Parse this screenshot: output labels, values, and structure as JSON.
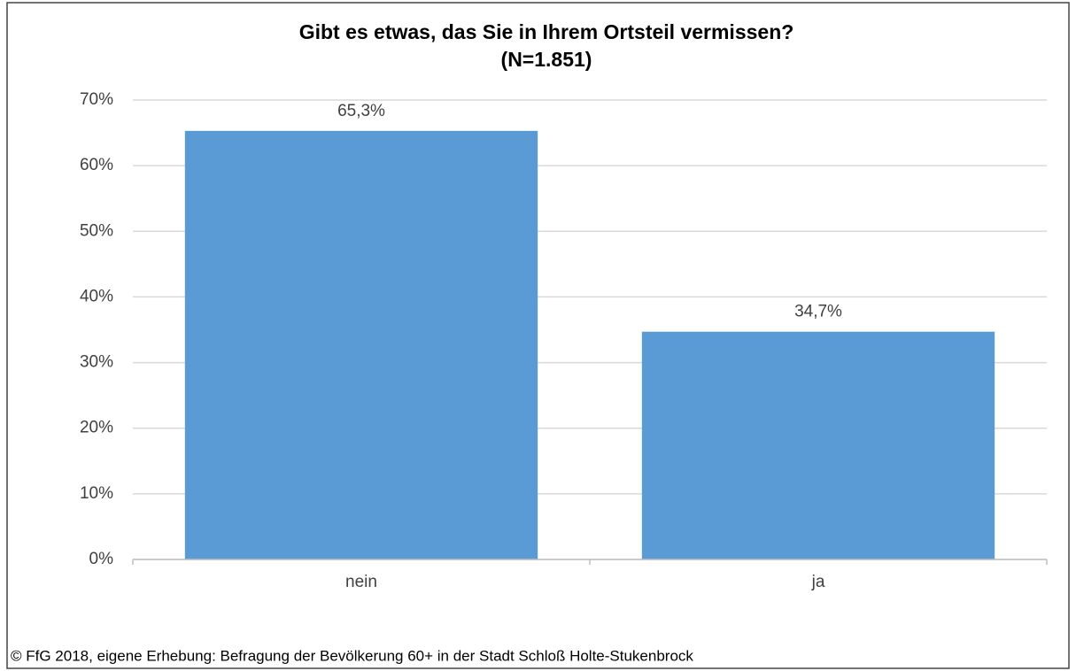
{
  "chart_data": {
    "type": "bar",
    "title": "Gibt es etwas, das Sie in Ihrem Ortsteil vermissen?",
    "subtitle": "(N=1.851)",
    "categories": [
      "nein",
      "ja"
    ],
    "values": [
      65.3,
      34.7
    ],
    "value_labels": [
      "65,3%",
      "34,7%"
    ],
    "color": "#5b9bd5",
    "ylim": [
      0,
      70
    ],
    "yticks": [
      {
        "value": 0,
        "label": "0%"
      },
      {
        "value": 10,
        "label": "10%"
      },
      {
        "value": 20,
        "label": "20%"
      },
      {
        "value": 30,
        "label": "30%"
      },
      {
        "value": 40,
        "label": "40%"
      },
      {
        "value": 50,
        "label": "50%"
      },
      {
        "value": 60,
        "label": "60%"
      },
      {
        "value": 70,
        "label": "70%"
      }
    ],
    "grid": true,
    "source": "© FfG 2018, eigene Erhebung: Befragung der Bevölkerung  60+ in der Stadt Schloß Holte-Stukenbrock"
  }
}
